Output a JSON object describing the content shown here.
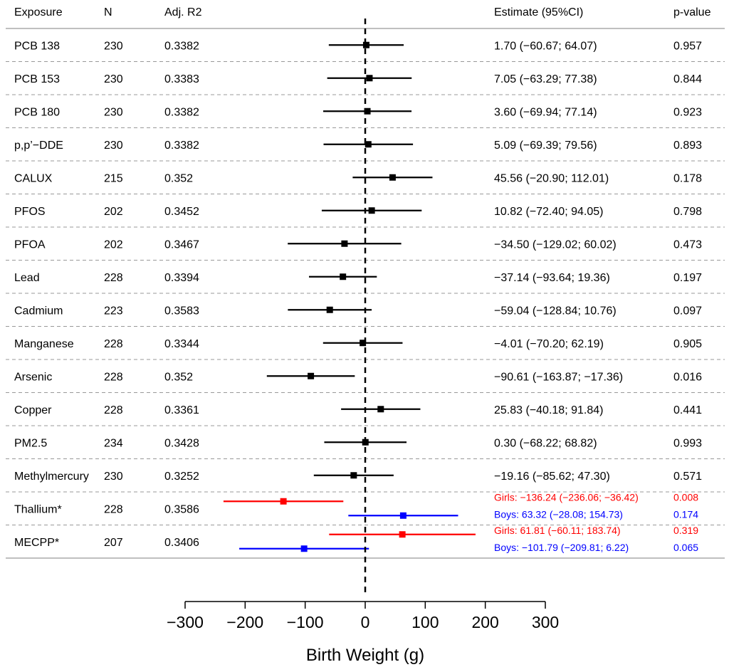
{
  "chart_data": {
    "type": "forest",
    "headers": {
      "exposure": "Exposure",
      "n": "N",
      "r2": "Adj. R2",
      "estimate": "Estimate (95%CI)",
      "pvalue": "p-value"
    },
    "xlabel": "Birth Weight (g)",
    "xlim": [
      -300,
      300
    ],
    "xticks": [
      "−300",
      "−200",
      "−100",
      "0",
      "100",
      "200",
      "300"
    ],
    "xtick_values": [
      -300,
      -200,
      -100,
      0,
      100,
      200,
      300
    ],
    "reference_line": 0,
    "colors": {
      "overall": "#000000",
      "girls": "#ff0000",
      "boys": "#0000ff"
    },
    "rows": [
      {
        "exposure": "PCB 138",
        "n": "230",
        "r2": "0.3382",
        "series": [
          {
            "group": "overall",
            "est": 1.7,
            "lo": -60.67,
            "hi": 64.07,
            "label": "1.70 (−60.67; 64.07)",
            "p": "0.957"
          }
        ]
      },
      {
        "exposure": "PCB 153",
        "n": "230",
        "r2": "0.3383",
        "series": [
          {
            "group": "overall",
            "est": 7.05,
            "lo": -63.29,
            "hi": 77.38,
            "label": "7.05 (−63.29; 77.38)",
            "p": "0.844"
          }
        ]
      },
      {
        "exposure": "PCB 180",
        "n": "230",
        "r2": "0.3382",
        "series": [
          {
            "group": "overall",
            "est": 3.6,
            "lo": -69.94,
            "hi": 77.14,
            "label": "3.60 (−69.94; 77.14)",
            "p": "0.923"
          }
        ]
      },
      {
        "exposure": "p,p’−DDE",
        "n": "230",
        "r2": "0.3382",
        "series": [
          {
            "group": "overall",
            "est": 5.09,
            "lo": -69.39,
            "hi": 79.56,
            "label": "5.09 (−69.39; 79.56)",
            "p": "0.893"
          }
        ]
      },
      {
        "exposure": "CALUX",
        "n": "215",
        "r2": "0.352",
        "series": [
          {
            "group": "overall",
            "est": 45.56,
            "lo": -20.9,
            "hi": 112.01,
            "label": "45.56 (−20.90; 112.01)",
            "p": "0.178"
          }
        ]
      },
      {
        "exposure": "PFOS",
        "n": "202",
        "r2": "0.3452",
        "series": [
          {
            "group": "overall",
            "est": 10.82,
            "lo": -72.4,
            "hi": 94.05,
            "label": "10.82 (−72.40; 94.05)",
            "p": "0.798"
          }
        ]
      },
      {
        "exposure": "PFOA",
        "n": "202",
        "r2": "0.3467",
        "series": [
          {
            "group": "overall",
            "est": -34.5,
            "lo": -129.02,
            "hi": 60.02,
            "label": "−34.50 (−129.02; 60.02)",
            "p": "0.473"
          }
        ]
      },
      {
        "exposure": "Lead",
        "n": "228",
        "r2": "0.3394",
        "series": [
          {
            "group": "overall",
            "est": -37.14,
            "lo": -93.64,
            "hi": 19.36,
            "label": "−37.14 (−93.64; 19.36)",
            "p": "0.197"
          }
        ]
      },
      {
        "exposure": "Cadmium",
        "n": "223",
        "r2": "0.3583",
        "series": [
          {
            "group": "overall",
            "est": -59.04,
            "lo": -128.84,
            "hi": 10.76,
            "label": "−59.04 (−128.84; 10.76)",
            "p": "0.097"
          }
        ]
      },
      {
        "exposure": "Manganese",
        "n": "228",
        "r2": "0.3344",
        "series": [
          {
            "group": "overall",
            "est": -4.01,
            "lo": -70.2,
            "hi": 62.19,
            "label": "−4.01 (−70.20; 62.19)",
            "p": "0.905"
          }
        ]
      },
      {
        "exposure": "Arsenic",
        "n": "228",
        "r2": "0.352",
        "series": [
          {
            "group": "overall",
            "est": -90.61,
            "lo": -163.87,
            "hi": -17.36,
            "label": "−90.61 (−163.87; −17.36)",
            "p": "0.016"
          }
        ]
      },
      {
        "exposure": "Copper",
        "n": "228",
        "r2": "0.3361",
        "series": [
          {
            "group": "overall",
            "est": 25.83,
            "lo": -40.18,
            "hi": 91.84,
            "label": "25.83 (−40.18; 91.84)",
            "p": "0.441"
          }
        ]
      },
      {
        "exposure": "PM2.5",
        "n": "234",
        "r2": "0.3428",
        "series": [
          {
            "group": "overall",
            "est": 0.3,
            "lo": -68.22,
            "hi": 68.82,
            "label": "0.30 (−68.22; 68.82)",
            "p": "0.993"
          }
        ]
      },
      {
        "exposure": "Methylmercury",
        "n": "230",
        "r2": "0.3252",
        "series": [
          {
            "group": "overall",
            "est": -19.16,
            "lo": -85.62,
            "hi": 47.3,
            "label": "−19.16 (−85.62; 47.30)",
            "p": "0.571"
          }
        ]
      },
      {
        "exposure": "Thallium*",
        "n": "228",
        "r2": "0.3586",
        "series": [
          {
            "group": "girls",
            "est": -136.24,
            "lo": -236.06,
            "hi": -36.42,
            "label": "Girls: −136.24 (−236.06; −36.42)",
            "p": "0.008"
          },
          {
            "group": "boys",
            "est": 63.32,
            "lo": -28.08,
            "hi": 154.73,
            "label": "Boys: 63.32 (−28.08; 154.73)",
            "p": "0.174"
          }
        ]
      },
      {
        "exposure": "MECPP*",
        "n": "207",
        "r2": "0.3406",
        "series": [
          {
            "group": "girls",
            "est": 61.81,
            "lo": -60.11,
            "hi": 183.74,
            "label": "Girls: 61.81 (−60.11; 183.74)",
            "p": "0.319"
          },
          {
            "group": "boys",
            "est": -101.79,
            "lo": -209.81,
            "hi": 6.22,
            "label": "Boys: −101.79 (−209.81; 6.22)",
            "p": "0.065"
          }
        ]
      }
    ]
  }
}
